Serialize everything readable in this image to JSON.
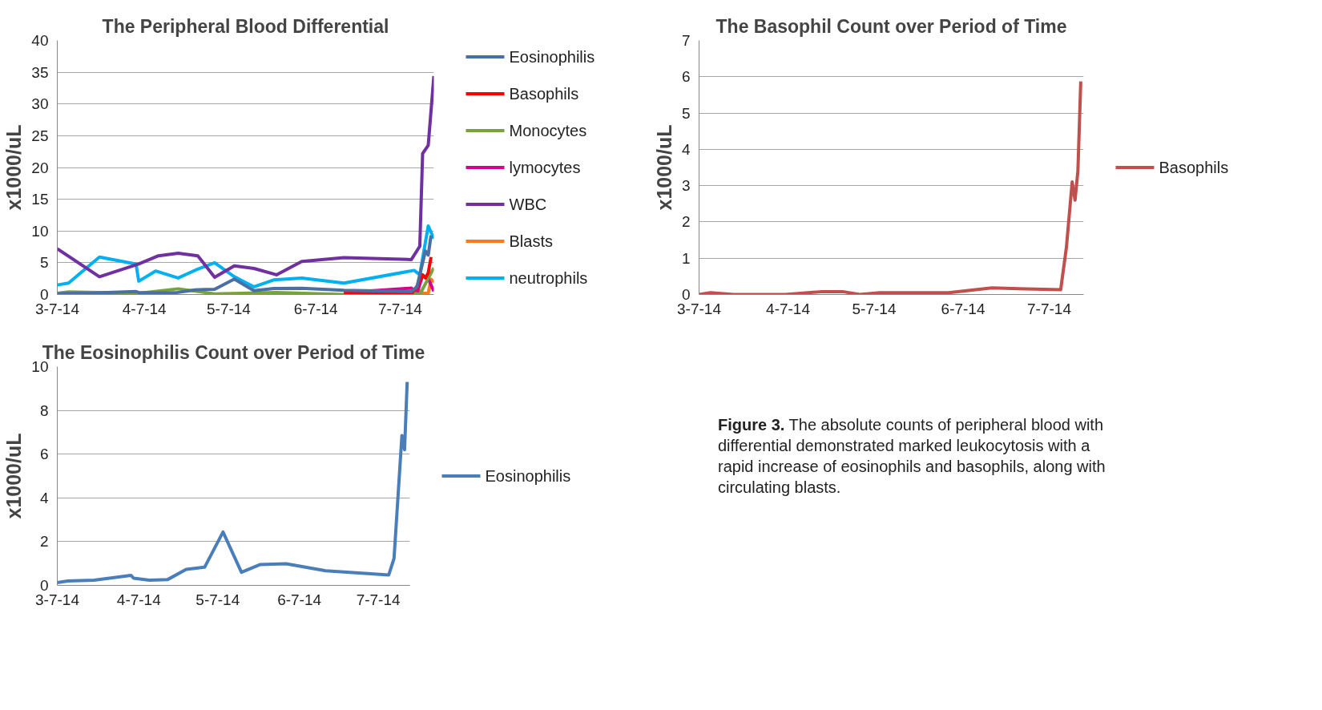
{
  "chart_data": [
    {
      "type": "line",
      "title": "The Peripheral Blood Differential",
      "ylabel": "x1000/uL",
      "xlim": [
        "2014-03-07",
        "2014-07-19"
      ],
      "ylim": [
        0,
        40
      ],
      "yticks": [
        0,
        5,
        10,
        15,
        20,
        25,
        30,
        35,
        40
      ],
      "xticks": [
        {
          "value": "2014-03-07",
          "label": "3-7-14"
        },
        {
          "value": "2014-04-07",
          "label": "4-7-14"
        },
        {
          "value": "2014-05-07",
          "label": "5-7-14"
        },
        {
          "value": "2014-06-07",
          "label": "6-7-14"
        },
        {
          "value": "2014-07-07",
          "label": "7-7-14"
        }
      ],
      "grid": "y",
      "legend": "right",
      "line_style": "solid",
      "series": [
        {
          "name": "Eosinophilis",
          "color": "#4a6fa5",
          "x": [
            "2014-03-07",
            "2014-03-11",
            "2014-03-21",
            "2014-04-04",
            "2014-04-05",
            "2014-04-11",
            "2014-04-18",
            "2014-04-25",
            "2014-05-02",
            "2014-05-09",
            "2014-05-16",
            "2014-05-23",
            "2014-06-02",
            "2014-06-17",
            "2014-07-11",
            "2014-07-13",
            "2014-07-16",
            "2014-07-17",
            "2014-07-18"
          ],
          "values": [
            0.13,
            0.2,
            0.24,
            0.46,
            0.33,
            0.24,
            0.27,
            0.73,
            0.83,
            2.44,
            0.6,
            0.95,
            0.99,
            0.67,
            0.48,
            1.23,
            6.85,
            6.2,
            9.3
          ]
        },
        {
          "name": "Basophils",
          "color": "#ff0000",
          "x": [
            "2014-06-17",
            "2014-07-11",
            "2014-07-13",
            "2014-07-15",
            "2014-07-16",
            "2014-07-17",
            "2014-07-18"
          ],
          "values": [
            0.2,
            0.1,
            1.3,
            3.1,
            2.6,
            3.4,
            5.9
          ]
        },
        {
          "name": "Monocytes",
          "color": "#77a33a",
          "x": [
            "2014-03-07",
            "2014-03-11",
            "2014-04-05",
            "2014-04-19",
            "2014-05-02",
            "2014-05-24",
            "2014-06-17",
            "2014-07-12",
            "2014-07-14",
            "2014-07-19"
          ],
          "values": [
            0.2,
            0.4,
            0.2,
            0.9,
            0.1,
            0.3,
            0,
            0.2,
            0,
            4.2
          ]
        },
        {
          "name": "lymocytes",
          "color": "#d6008c",
          "x": [
            "2014-06-17",
            "2014-07-11",
            "2014-07-13",
            "2014-07-15",
            "2014-07-17",
            "2014-07-19"
          ],
          "values": [
            0.3,
            1.0,
            0.2,
            3.0,
            2.5,
            0.5
          ]
        },
        {
          "name": "WBC",
          "color": "#7030a0",
          "x": [
            "2014-03-07",
            "2014-03-22",
            "2014-04-05",
            "2014-04-12",
            "2014-04-19",
            "2014-04-26",
            "2014-05-02",
            "2014-05-09",
            "2014-05-16",
            "2014-05-24",
            "2014-06-02",
            "2014-06-17",
            "2014-07-11",
            "2014-07-14",
            "2014-07-15",
            "2014-07-17",
            "2014-07-19"
          ],
          "values": [
            7.2,
            2.8,
            4.8,
            6.1,
            6.5,
            6.1,
            2.7,
            4.5,
            4.1,
            3.1,
            5.2,
            5.8,
            5.5,
            7.6,
            22.2,
            23.5,
            34.4
          ]
        },
        {
          "name": "Blasts",
          "color": "#f97b1c",
          "x": [
            "2014-07-11",
            "2014-07-13",
            "2014-07-15",
            "2014-07-17",
            "2014-07-18",
            "2014-07-19"
          ],
          "values": [
            0,
            0.9,
            0.2,
            0.2,
            2.4,
            2.0
          ]
        },
        {
          "name": "neutrophils",
          "color": "#00b0f0",
          "x": [
            "2014-03-07",
            "2014-03-11",
            "2014-03-22",
            "2014-04-04",
            "2014-04-05",
            "2014-04-11",
            "2014-04-19",
            "2014-04-26",
            "2014-05-02",
            "2014-05-09",
            "2014-05-16",
            "2014-05-23",
            "2014-06-02",
            "2014-06-17",
            "2014-07-12",
            "2014-07-14",
            "2014-07-17",
            "2014-07-19"
          ],
          "values": [
            1.5,
            1.8,
            5.9,
            4.8,
            2.1,
            3.7,
            2.6,
            4.0,
            5.0,
            2.8,
            1.2,
            2.3,
            2.6,
            1.8,
            3.8,
            3.1,
            10.8,
            8.8
          ]
        }
      ]
    },
    {
      "type": "line",
      "title": "The Basophil Count over Period of Time",
      "ylabel": "x1000/uL",
      "xlim": [
        "2014-03-07",
        "2014-07-19"
      ],
      "ylim": [
        0,
        7
      ],
      "yticks": [
        0,
        1,
        2,
        3,
        4,
        5,
        6,
        7
      ],
      "xticks": [
        {
          "value": "2014-03-07",
          "label": "3-7-14"
        },
        {
          "value": "2014-04-07",
          "label": "4-7-14"
        },
        {
          "value": "2014-05-07",
          "label": "5-7-14"
        },
        {
          "value": "2014-06-07",
          "label": "6-7-14"
        },
        {
          "value": "2014-07-07",
          "label": "7-7-14"
        }
      ],
      "grid": "y",
      "legend": "right",
      "line_style": "solid",
      "series": [
        {
          "name": "Basophils",
          "color": "#c0504d",
          "x": [
            "2014-03-07",
            "2014-03-11",
            "2014-03-19",
            "2014-04-06",
            "2014-04-19",
            "2014-04-26",
            "2014-05-02",
            "2014-05-09",
            "2014-06-02",
            "2014-06-17",
            "2014-07-11",
            "2014-07-13",
            "2014-07-15",
            "2014-07-16",
            "2014-07-17",
            "2014-07-18"
          ],
          "values": [
            0,
            0.05,
            0,
            0,
            0.08,
            0.08,
            0,
            0.05,
            0.05,
            0.18,
            0.13,
            1.3,
            3.1,
            2.6,
            3.4,
            5.87
          ]
        }
      ]
    },
    {
      "type": "line",
      "title": "The Eosinophilis Count over Period of Time",
      "ylabel": "x1000/uL",
      "xlim": [
        "2014-03-07",
        "2014-07-19"
      ],
      "ylim": [
        0,
        10
      ],
      "yticks": [
        0,
        2,
        4,
        6,
        8,
        10
      ],
      "xticks": [
        {
          "value": "2014-03-07",
          "label": "3-7-14"
        },
        {
          "value": "2014-04-07",
          "label": "4-7-14"
        },
        {
          "value": "2014-05-07",
          "label": "5-7-14"
        },
        {
          "value": "2014-06-07",
          "label": "6-7-14"
        },
        {
          "value": "2014-07-07",
          "label": "7-7-14"
        }
      ],
      "grid": "y",
      "legend": "right",
      "line_style": "solid",
      "series": [
        {
          "name": "Eosinophilis",
          "color": "#4a7ebb",
          "x": [
            "2014-03-07",
            "2014-03-11",
            "2014-03-21",
            "2014-04-04",
            "2014-04-05",
            "2014-04-11",
            "2014-04-18",
            "2014-04-25",
            "2014-05-02",
            "2014-05-09",
            "2014-05-16",
            "2014-05-23",
            "2014-06-02",
            "2014-06-17",
            "2014-07-11",
            "2014-07-13",
            "2014-07-16",
            "2014-07-17",
            "2014-07-18"
          ],
          "values": [
            0.13,
            0.2,
            0.24,
            0.46,
            0.33,
            0.24,
            0.27,
            0.73,
            0.83,
            2.44,
            0.6,
            0.95,
            0.99,
            0.67,
            0.48,
            1.23,
            6.85,
            6.2,
            9.3
          ]
        }
      ]
    },
    {
      "type": "other",
      "annotations": [
        "Figure 3.",
        "The absolute counts of peripheral blood with differential demonstrated marked leukocytosis with a rapid increase of eosinophils and basophils, along with circulating blasts."
      ]
    }
  ]
}
